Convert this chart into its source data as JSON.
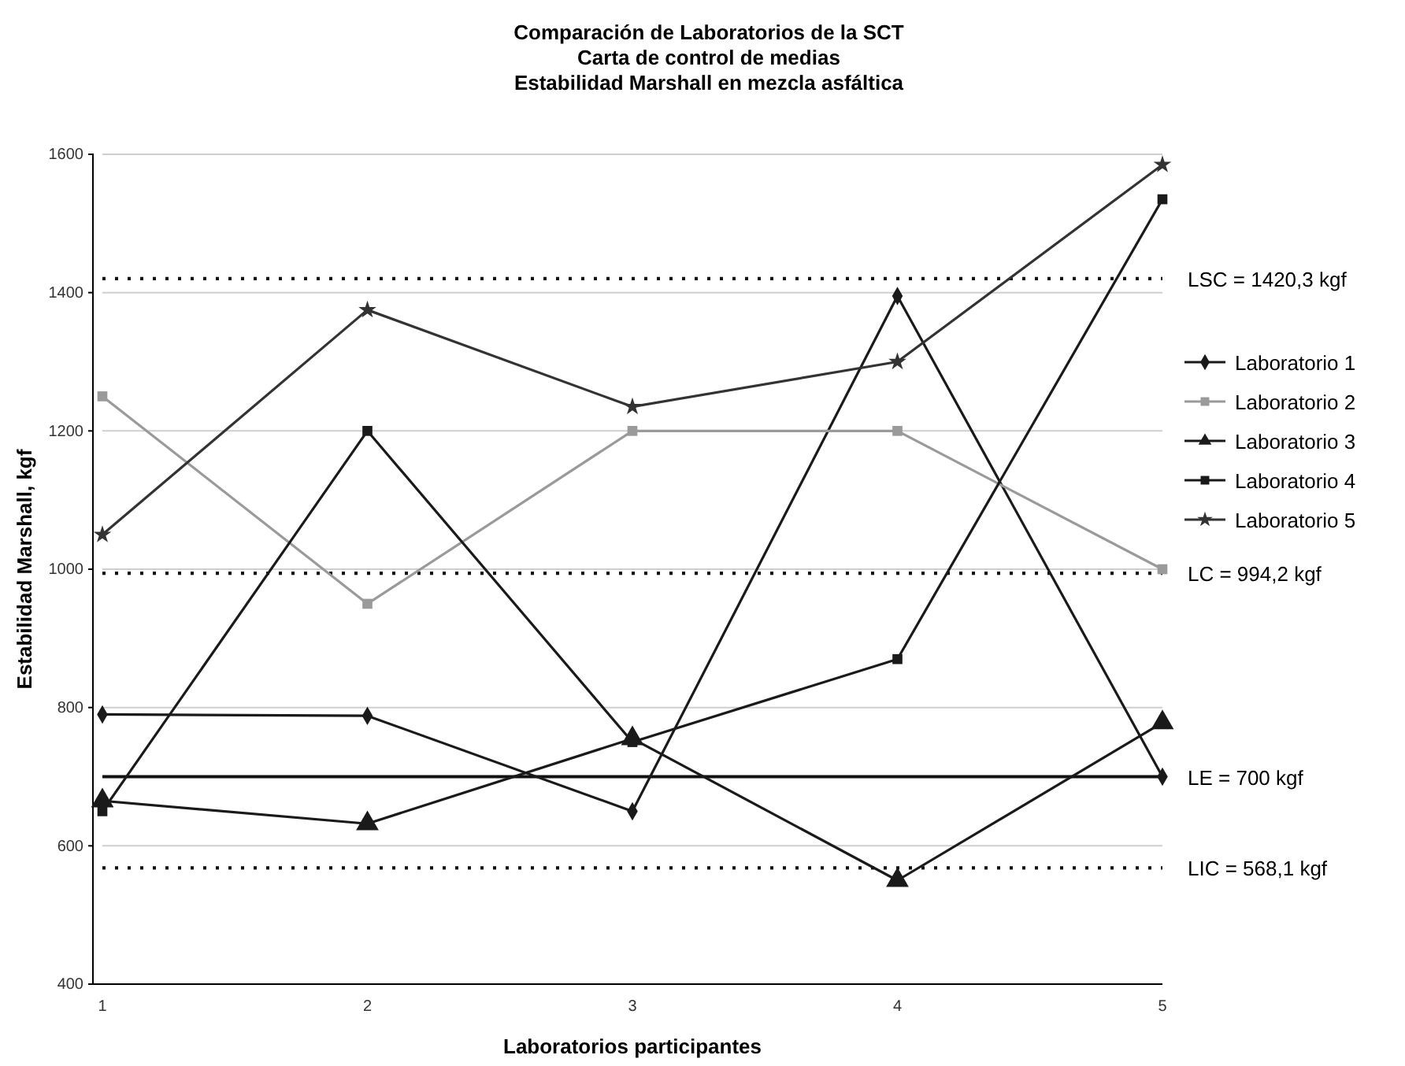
{
  "chart_data": {
    "type": "line",
    "title": "Comparación de Laboratorios de la SCT",
    "subtitle": "Carta de control de medias\nEstabilidad Marshall en mezcla asfáltica",
    "xlabel": "Laboratorios participantes",
    "ylabel": "Estabilidad Marshall, kgf",
    "x": [
      1,
      2,
      3,
      4,
      5
    ],
    "xlim": [
      1,
      5
    ],
    "xticks": [
      1,
      2,
      3,
      4,
      5
    ],
    "ylim": [
      400,
      1600
    ],
    "yticks": [
      400,
      600,
      800,
      1000,
      1200,
      1400,
      1600
    ],
    "grid": "y",
    "legend": "right",
    "series": [
      {
        "name": "Laboratorio 1",
        "color": "#1a1a1a",
        "marker": "diamond",
        "values": [
          790,
          788,
          650,
          1395,
          700
        ]
      },
      {
        "name": "Laboratorio 2",
        "color": "#9a9a9a",
        "marker": "square",
        "values": [
          1250,
          950,
          1200,
          1200,
          1000
        ]
      },
      {
        "name": "Laboratorio 3",
        "color": "#1a1a1a",
        "marker": "triangle",
        "values": [
          665,
          632,
          755,
          550,
          778
        ]
      },
      {
        "name": "Laboratorio 4",
        "color": "#1a1a1a",
        "marker": "square",
        "values": [
          650,
          1200,
          750,
          870,
          1535
        ]
      },
      {
        "name": "Laboratorio 5",
        "color": "#333333",
        "marker": "star",
        "values": [
          1050,
          1375,
          1235,
          1300,
          1585
        ]
      }
    ],
    "ref_lines": [
      {
        "axis": "y",
        "value": 1420.3,
        "label": "LSC = 1420,3 kgf",
        "line_style": "dotted"
      },
      {
        "axis": "y",
        "value": 994.2,
        "label": "LC = 994,2 kgf",
        "line_style": "dotted"
      },
      {
        "axis": "y",
        "value": 700,
        "label": "LE = 700 kgf",
        "line_style": "solid"
      },
      {
        "axis": "y",
        "value": 568.1,
        "label": "LIC = 568,1 kgf",
        "line_style": "dotted"
      }
    ]
  }
}
